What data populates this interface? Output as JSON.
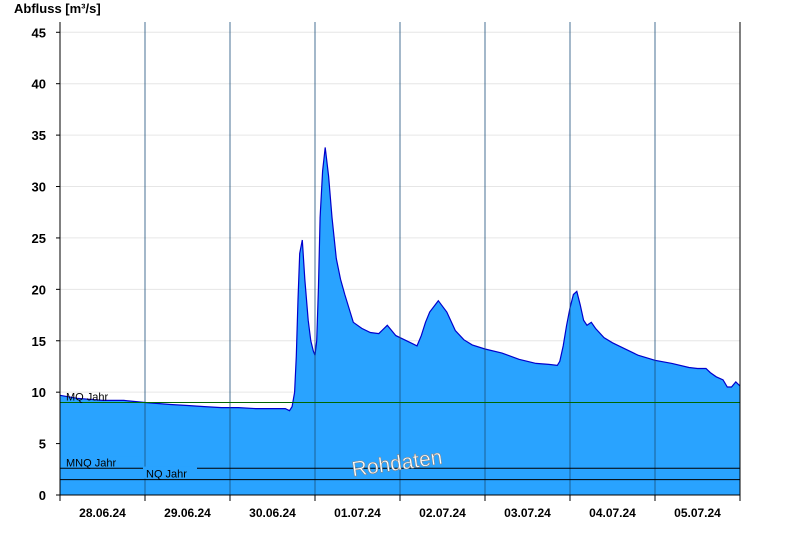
{
  "chart_data": {
    "type": "area",
    "ylabel": "Abfluss [m³/s]",
    "xlabel": "",
    "ylim": [
      0,
      46
    ],
    "yticks": [
      0,
      5,
      10,
      15,
      20,
      25,
      30,
      35,
      40,
      45
    ],
    "xlim_days": [
      0,
      8
    ],
    "x_dates": [
      "28.06.24",
      "29.06.24",
      "30.06.24",
      "01.07.24",
      "02.07.24",
      "03.07.24",
      "04.07.24",
      "05.07.24"
    ],
    "grid": true,
    "fill_color": "#29a3ff",
    "line_color": "#0000cc",
    "series": [
      {
        "x": [
          0.0,
          0.2,
          0.5,
          0.75,
          1.0,
          1.15,
          1.3,
          1.5,
          1.7,
          1.9,
          2.1,
          2.3,
          2.5,
          2.65,
          2.7,
          2.73,
          2.76,
          2.78,
          2.8,
          2.82,
          2.85,
          2.88,
          2.92,
          2.95,
          2.98,
          3.0,
          3.02,
          3.04,
          3.06,
          3.09,
          3.12,
          3.16,
          3.2,
          3.25,
          3.3,
          3.35,
          3.45,
          3.55,
          3.65,
          3.75,
          3.85,
          3.95,
          4.05,
          4.15,
          4.2,
          4.25,
          4.3,
          4.35,
          4.45,
          4.55,
          4.65,
          4.75,
          4.85,
          5.0,
          5.2,
          5.4,
          5.6,
          5.75,
          5.85,
          5.88,
          5.92,
          5.96,
          6.0,
          6.04,
          6.08,
          6.12,
          6.16,
          6.2,
          6.25,
          6.3,
          6.4,
          6.5,
          6.6,
          6.8,
          7.0,
          7.2,
          7.4,
          7.5,
          7.6,
          7.65,
          7.72,
          7.8,
          7.85,
          7.9,
          7.95,
          8.0
        ],
        "y": [
          9.7,
          9.4,
          9.2,
          9.2,
          9.0,
          8.9,
          8.8,
          8.7,
          8.6,
          8.5,
          8.5,
          8.4,
          8.4,
          8.4,
          8.2,
          8.6,
          10.0,
          13.5,
          19.0,
          23.5,
          24.8,
          21.0,
          17.0,
          15.0,
          14.0,
          13.6,
          15.0,
          20.0,
          27.0,
          31.5,
          33.8,
          31.0,
          27.0,
          23.0,
          21.0,
          19.5,
          16.8,
          16.2,
          15.8,
          15.7,
          16.5,
          15.5,
          15.1,
          14.7,
          14.5,
          15.5,
          16.8,
          17.8,
          18.9,
          17.8,
          16.0,
          15.1,
          14.6,
          14.2,
          13.8,
          13.2,
          12.8,
          12.7,
          12.6,
          13.0,
          14.5,
          16.5,
          18.2,
          19.5,
          19.8,
          18.5,
          17.0,
          16.5,
          16.8,
          16.2,
          15.3,
          14.8,
          14.4,
          13.6,
          13.1,
          12.8,
          12.4,
          12.3,
          12.3,
          11.9,
          11.5,
          11.2,
          10.5,
          10.5,
          11.0,
          10.6
        ]
      }
    ],
    "reference_lines": [
      {
        "name": "MQ Jahr",
        "value": 9.0,
        "color": "#006600"
      },
      {
        "name": "MNQ Jahr",
        "value": 2.6,
        "color": "#000000"
      },
      {
        "name": "NQ Jahr",
        "value": 1.5,
        "color": "#000000"
      }
    ],
    "watermark": "Rohdaten"
  }
}
